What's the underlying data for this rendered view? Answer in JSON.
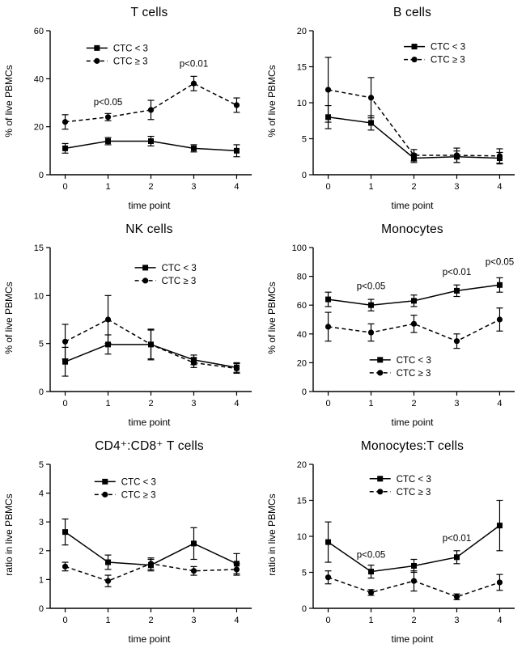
{
  "chart_data": [
    {
      "type": "line",
      "title": "T cells",
      "xlabel": "time point",
      "ylabel": "% of live PBMCs",
      "x": [
        0,
        1,
        2,
        3,
        4
      ],
      "xlim": [
        -0.35,
        4.35
      ],
      "ylim": [
        0,
        60
      ],
      "yticks": [
        0,
        20,
        40,
        60
      ],
      "legend": {
        "fx": 0.18,
        "fy": 0.12,
        "position": "top-left"
      },
      "series": [
        {
          "name": "CTC < 3",
          "marker": "square",
          "line": "solid",
          "values": [
            11,
            14,
            14,
            11,
            10
          ],
          "err": [
            2,
            1.5,
            2,
            1.5,
            2.5
          ]
        },
        {
          "name": "CTC ≥ 3",
          "marker": "circle",
          "line": "dashed",
          "values": [
            22,
            24,
            27,
            38,
            29
          ],
          "err": [
            3,
            1.5,
            4,
            3,
            3
          ]
        }
      ],
      "annotations": [
        {
          "text": "p<0.05",
          "x": 1,
          "y": 29
        },
        {
          "text": "p<0.01",
          "x": 3,
          "y": 45
        }
      ]
    },
    {
      "type": "line",
      "title": "B cells",
      "xlabel": "time point",
      "ylabel": "% of live PBMCs",
      "x": [
        0,
        1,
        2,
        3,
        4
      ],
      "xlim": [
        -0.35,
        4.35
      ],
      "ylim": [
        0,
        20
      ],
      "yticks": [
        0,
        5,
        10,
        15,
        20
      ],
      "legend": {
        "fx": 0.45,
        "fy": 0.11,
        "position": "top-right"
      },
      "series": [
        {
          "name": "CTC < 3",
          "marker": "square",
          "line": "solid",
          "values": [
            8,
            7.2,
            2.3,
            2.5,
            2.3
          ],
          "err": [
            1.6,
            1,
            0.6,
            0.8,
            0.8
          ]
        },
        {
          "name": "CTC ≥ 3",
          "marker": "circle",
          "line": "dashed",
          "values": [
            11.8,
            10.7,
            2.7,
            2.7,
            2.6
          ],
          "err": [
            4.5,
            2.8,
            0.8,
            1,
            1
          ]
        }
      ],
      "annotations": []
    },
    {
      "type": "line",
      "title": "NK cells",
      "xlabel": "time point",
      "ylabel": "% of live PBMCs",
      "x": [
        0,
        1,
        2,
        3,
        4
      ],
      "xlim": [
        -0.35,
        4.35
      ],
      "ylim": [
        0,
        15
      ],
      "yticks": [
        0,
        5,
        10,
        15
      ],
      "legend": {
        "fx": 0.42,
        "fy": 0.14,
        "position": "top-right"
      },
      "series": [
        {
          "name": "CTC < 3",
          "marker": "square",
          "line": "solid",
          "values": [
            3.1,
            4.9,
            4.9,
            3.3,
            2.5
          ],
          "err": [
            1.5,
            1,
            1.6,
            0.5,
            0.5
          ]
        },
        {
          "name": "CTC ≥ 3",
          "marker": "circle",
          "line": "dashed",
          "values": [
            5.2,
            7.5,
            4.9,
            3.0,
            2.4
          ],
          "err": [
            1.8,
            2.5,
            1.5,
            0.5,
            0.5
          ]
        }
      ],
      "annotations": []
    },
    {
      "type": "line",
      "title": "Monocytes",
      "xlabel": "time point",
      "ylabel": "% of live PBMCs",
      "x": [
        0,
        1,
        2,
        3,
        4
      ],
      "xlim": [
        -0.35,
        4.35
      ],
      "ylim": [
        0,
        100
      ],
      "yticks": [
        0,
        20,
        40,
        60,
        80,
        100
      ],
      "legend": {
        "fx": 0.28,
        "fy": 0.78,
        "position": "bottom"
      },
      "series": [
        {
          "name": "CTC < 3",
          "marker": "square",
          "line": "solid",
          "values": [
            64,
            60,
            63,
            70,
            74
          ],
          "err": [
            5,
            4,
            4,
            4,
            5
          ]
        },
        {
          "name": "CTC ≥ 3",
          "marker": "circle",
          "line": "dashed",
          "values": [
            45,
            41,
            47,
            35,
            50
          ],
          "err": [
            10,
            6,
            6,
            5,
            8
          ]
        }
      ],
      "annotations": [
        {
          "text": "p<0.05",
          "x": 1,
          "y": 71
        },
        {
          "text": "p<0.01",
          "x": 3,
          "y": 81
        },
        {
          "text": "p<0.05",
          "x": 4,
          "y": 88
        }
      ]
    },
    {
      "type": "line",
      "title": "CD4⁺:CD8⁺ T cells",
      "xlabel": "time point",
      "ylabel": "ratio in live PBMCs",
      "x": [
        0,
        1,
        2,
        3,
        4
      ],
      "xlim": [
        -0.35,
        4.35
      ],
      "ylim": [
        0,
        5
      ],
      "yticks": [
        0,
        1,
        2,
        3,
        4,
        5
      ],
      "legend": {
        "fx": 0.22,
        "fy": 0.12,
        "position": "top-left"
      },
      "series": [
        {
          "name": "CTC < 3",
          "marker": "square",
          "line": "solid",
          "values": [
            2.65,
            1.6,
            1.5,
            2.25,
            1.55
          ],
          "err": [
            0.45,
            0.25,
            0.2,
            0.55,
            0.35
          ]
        },
        {
          "name": "CTC ≥ 3",
          "marker": "circle",
          "line": "dashed",
          "values": [
            1.45,
            0.95,
            1.55,
            1.3,
            1.35
          ],
          "err": [
            0.15,
            0.2,
            0.2,
            0.15,
            0.2
          ]
        }
      ],
      "annotations": []
    },
    {
      "type": "line",
      "title": "Monocytes:T cells",
      "xlabel": "time point",
      "ylabel": "ratio in live PBMCs",
      "x": [
        0,
        1,
        2,
        3,
        4
      ],
      "xlim": [
        -0.35,
        4.35
      ],
      "ylim": [
        0,
        20
      ],
      "yticks": [
        0,
        5,
        10,
        15,
        20
      ],
      "legend": {
        "fx": 0.28,
        "fy": 0.1,
        "position": "top-left"
      },
      "series": [
        {
          "name": "CTC < 3",
          "marker": "square",
          "line": "solid",
          "values": [
            9.2,
            5.1,
            5.9,
            7.1,
            11.5
          ],
          "err": [
            2.8,
            0.9,
            0.9,
            0.9,
            3.5
          ]
        },
        {
          "name": "CTC ≥ 3",
          "marker": "circle",
          "line": "dashed",
          "values": [
            4.3,
            2.2,
            3.8,
            1.6,
            3.6
          ],
          "err": [
            0.9,
            0.4,
            1.4,
            0.4,
            1.1
          ]
        }
      ],
      "annotations": [
        {
          "text": "p<0.05",
          "x": 1,
          "y": 7
        },
        {
          "text": "p<0.01",
          "x": 3,
          "y": 9.3
        }
      ]
    }
  ]
}
